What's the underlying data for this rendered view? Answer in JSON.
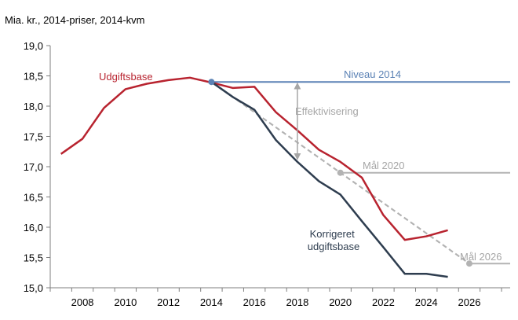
{
  "chart_data": {
    "type": "line",
    "unit_label": "Mia. kr., 2014-priser, 2014-kvm",
    "x_ticks": [
      "2008",
      "2010",
      "2012",
      "2014",
      "2016",
      "2018",
      "2020",
      "2022",
      "2024",
      "2026"
    ],
    "y_ticks": [
      "15,0",
      "15,5",
      "16,0",
      "16,5",
      "17,0",
      "17,5",
      "18,0",
      "18,5",
      "19,0"
    ],
    "xlim": [
      2006.5,
      2027.9
    ],
    "ylim": [
      15.0,
      19.0
    ],
    "grid": false,
    "colors": {
      "udgiftsbase": "#b8232f",
      "korrigeret": "#2e3d4f",
      "niveau": "#5b82b5",
      "targets": "#b3b3b3",
      "axis": "#7f7f7f"
    },
    "series": [
      {
        "name": "Udgiftsbase",
        "x": [
          2007,
          2008,
          2009,
          2010,
          2011,
          2012,
          2013,
          2014,
          2015,
          2016,
          2017,
          2018,
          2019,
          2020,
          2021,
          2022,
          2023,
          2024,
          2025
        ],
        "y": [
          17.21,
          17.46,
          17.97,
          18.28,
          18.37,
          18.43,
          18.47,
          18.39,
          18.3,
          18.32,
          17.9,
          17.6,
          17.28,
          17.08,
          16.82,
          16.2,
          15.79,
          15.85,
          15.95
        ]
      },
      {
        "name": "Korrigeret udgiftsbase",
        "x": [
          2014,
          2015,
          2016,
          2017,
          2018,
          2019,
          2020,
          2021,
          2022,
          2023,
          2024,
          2025
        ],
        "y": [
          18.4,
          18.15,
          17.94,
          17.44,
          17.08,
          16.76,
          16.54,
          16.1,
          15.67,
          15.23,
          15.23,
          15.18
        ]
      }
    ],
    "reference_lines": [
      {
        "name": "Niveau 2014",
        "y": 18.4,
        "x_start": 2014,
        "x_end": 2027.9
      },
      {
        "name": "Mål 2020",
        "y": 16.9,
        "x_start": 2020,
        "x_end": 2027.9
      },
      {
        "name": "Mål 2026",
        "y": 15.4,
        "x_start": 2026,
        "x_end": 2027.9
      }
    ],
    "target_paths": [
      {
        "x": [
          2014,
          2020,
          2026
        ],
        "y": [
          18.4,
          16.9,
          15.4
        ]
      },
      {
        "x": [
          2014,
          2026
        ],
        "y": [
          18.4,
          15.4
        ]
      }
    ],
    "annotations": [
      {
        "text": "Effektivisering",
        "x_from": 2018,
        "y_from": 18.4,
        "y_to": 17.1
      }
    ]
  }
}
